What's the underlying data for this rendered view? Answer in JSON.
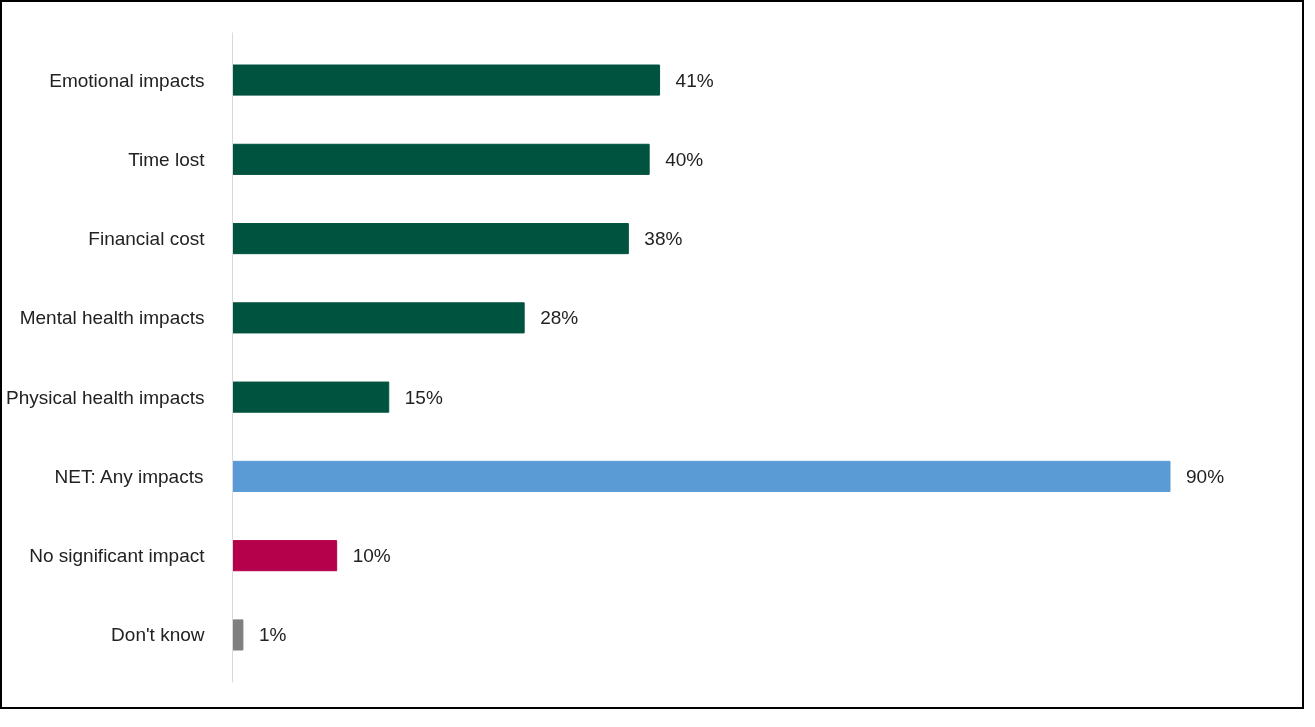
{
  "chart_data": {
    "type": "bar",
    "orientation": "horizontal",
    "categories": [
      "Emotional impacts",
      "Time lost",
      "Financial cost",
      "Mental health impacts",
      "Physical health impacts",
      "NET: Any impacts",
      "No significant impact",
      "Don't know"
    ],
    "values": [
      41,
      40,
      38,
      28,
      15,
      90,
      10,
      1
    ],
    "value_labels": [
      "41%",
      "40%",
      "38%",
      "28%",
      "15%",
      "90%",
      "10%",
      "1%"
    ],
    "colors": [
      "#00533f",
      "#00533f",
      "#00533f",
      "#00533f",
      "#00533f",
      "#5b9bd5",
      "#b5004b",
      "#7f7f7f"
    ],
    "grid": false,
    "tick_labels": "y"
  }
}
